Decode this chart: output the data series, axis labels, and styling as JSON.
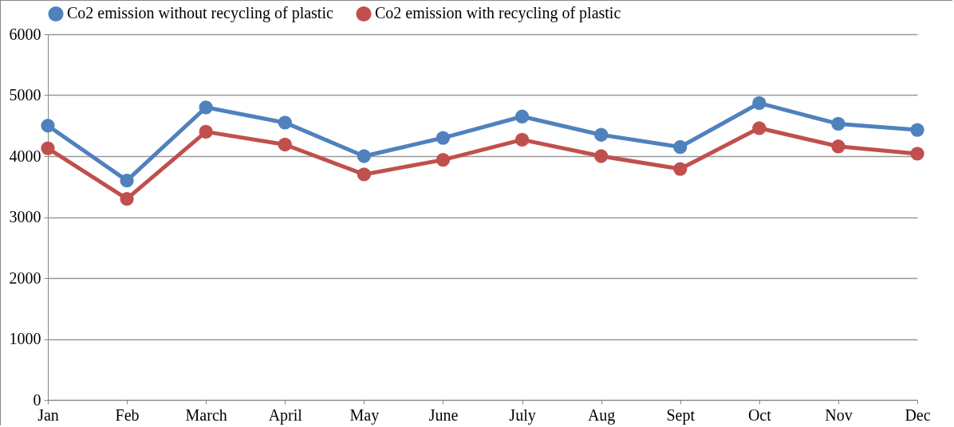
{
  "chart_data": {
    "type": "line",
    "categories": [
      "Jan",
      "Feb",
      "March",
      "April",
      "May",
      "June",
      "July",
      "Aug",
      "Sept",
      "Oct",
      "Nov",
      "Dec"
    ],
    "series": [
      {
        "name": "Co2 emission without recycling of plastic",
        "color": "#4f81bd",
        "values": [
          4500,
          3600,
          4800,
          4550,
          4000,
          4300,
          4650,
          4350,
          4150,
          4870,
          4530,
          4430
        ]
      },
      {
        "name": "Co2 emission with recycling of plastic",
        "color": "#c0504d",
        "values": [
          4130,
          3300,
          4400,
          4190,
          3700,
          3940,
          4270,
          4000,
          3790,
          4460,
          4160,
          4040
        ]
      }
    ],
    "ylim": [
      0,
      6000
    ],
    "yticks": [
      0,
      1000,
      2000,
      3000,
      4000,
      5000,
      6000
    ],
    "grid": "y",
    "legend": "top",
    "marker": "circle",
    "line_style": "solid"
  }
}
